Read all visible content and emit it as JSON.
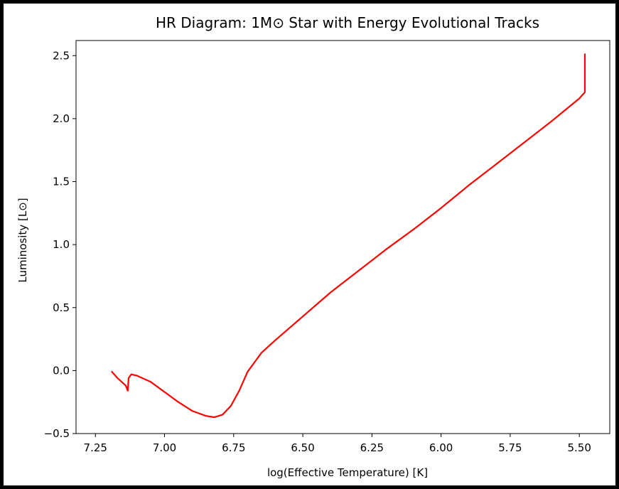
{
  "chart_data": {
    "type": "line",
    "title": "HR Diagram: 1M⊙ Star with Energy Evolutional Tracks",
    "xlabel": "log(Effective Temperature) [K]",
    "ylabel": "Luminosity [L⊙]",
    "xlim": [
      7.32,
      5.39
    ],
    "ylim": [
      -0.5,
      2.62
    ],
    "x_inverted": true,
    "grid": false,
    "xticks": [
      7.25,
      7.0,
      6.75,
      6.5,
      6.25,
      6.0,
      5.75,
      5.5
    ],
    "xtick_labels": [
      "7.25",
      "7.00",
      "6.75",
      "6.50",
      "6.25",
      "6.00",
      "5.75",
      "5.50"
    ],
    "yticks": [
      -0.5,
      0.0,
      0.5,
      1.0,
      1.5,
      2.0,
      2.5
    ],
    "ytick_labels": [
      "−0.5",
      "0.0",
      "0.5",
      "1.0",
      "1.5",
      "2.0",
      "2.5"
    ],
    "series": [
      {
        "color": "#ff0000",
        "x": [
          7.19,
          7.17,
          7.14,
          7.133,
          7.132,
          7.13,
          7.12,
          7.1,
          7.05,
          7.0,
          6.95,
          6.9,
          6.85,
          6.82,
          6.79,
          6.76,
          6.73,
          6.7,
          6.65,
          6.6,
          6.5,
          6.4,
          6.3,
          6.2,
          6.1,
          6.0,
          5.9,
          5.8,
          5.7,
          5.6,
          5.5,
          5.48,
          5.48
        ],
        "y": [
          -0.01,
          -0.06,
          -0.12,
          -0.16,
          -0.13,
          -0.06,
          -0.03,
          -0.04,
          -0.09,
          -0.17,
          -0.25,
          -0.32,
          -0.36,
          -0.37,
          -0.35,
          -0.28,
          -0.16,
          -0.01,
          0.14,
          0.24,
          0.43,
          0.62,
          0.79,
          0.96,
          1.12,
          1.29,
          1.47,
          1.64,
          1.81,
          1.98,
          2.16,
          2.21,
          2.51
        ]
      }
    ]
  }
}
